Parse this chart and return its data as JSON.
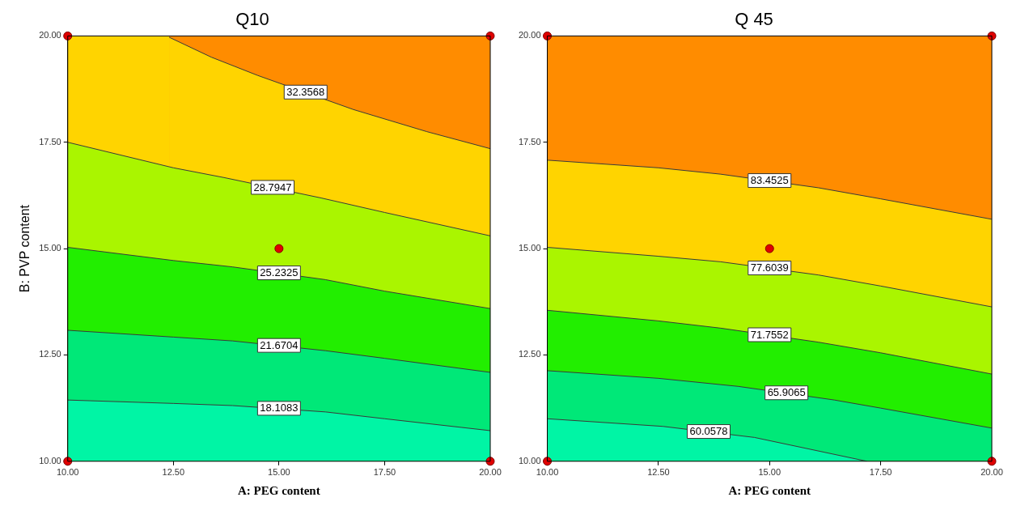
{
  "chart_data": [
    {
      "type": "area",
      "title": "Q10",
      "xlabel": "A: PEG content",
      "ylabel": "B: PVP content",
      "xlim": [
        10,
        20
      ],
      "ylim": [
        10,
        20
      ],
      "xticks": [
        {
          "value": 10,
          "label": "10.00"
        },
        {
          "value": 12.5,
          "label": "12.50"
        },
        {
          "value": 15,
          "label": "15.00"
        },
        {
          "value": 17.5,
          "label": "17.50"
        },
        {
          "value": 20,
          "label": "20.00"
        }
      ],
      "yticks": [
        {
          "value": 10,
          "label": "10.00"
        },
        {
          "value": 12.5,
          "label": "12.50"
        },
        {
          "value": 15,
          "label": "15.00"
        },
        {
          "value": 17.5,
          "label": "17.50"
        },
        {
          "value": 20,
          "label": "20.00"
        }
      ],
      "grid": false,
      "legend": false,
      "bands": [
        {
          "axis": "x",
          "from": 10,
          "to": 12.4,
          "color": "#ffd400"
        },
        {
          "axis": "x",
          "from": 12.4,
          "to": 20,
          "color": "#ff8c00"
        }
      ],
      "series": [
        {
          "name": "18.1083",
          "color": "#00f5a5",
          "x": [
            10,
            12.5,
            13.9,
            16.1,
            17.5,
            20
          ],
          "values": [
            11.44,
            11.36,
            11.31,
            11.16,
            11.0,
            10.72
          ]
        },
        {
          "name": "21.6704",
          "color": "#00e878",
          "x": [
            10,
            12.5,
            13.9,
            16.1,
            17.5,
            20
          ],
          "values": [
            13.08,
            12.92,
            12.83,
            12.6,
            12.42,
            12.09
          ]
        },
        {
          "name": "25.2325",
          "color": "#22ee00",
          "x": [
            10,
            12.5,
            13.9,
            16.1,
            17.5,
            20
          ],
          "values": [
            15.03,
            14.72,
            14.57,
            14.27,
            14.0,
            13.59
          ]
        },
        {
          "name": "28.7947",
          "color": "#aaf500",
          "x": [
            10,
            12.5,
            13.7,
            16.0,
            17.5,
            20
          ],
          "values": [
            17.5,
            16.9,
            16.67,
            16.19,
            15.85,
            15.3
          ]
        },
        {
          "name": "32.3568",
          "color": "#ffd400",
          "x": [
            12.4,
            13.4,
            14.5,
            16.76,
            18.5,
            20
          ],
          "values": [
            19.97,
            19.5,
            19.07,
            18.27,
            17.75,
            17.35
          ]
        },
        {
          "type": "scatter",
          "color": "#e00000",
          "marker": "circle",
          "x": [
            10,
            10,
            20,
            20,
            15
          ],
          "values": [
            10,
            20,
            10,
            20,
            15
          ]
        }
      ]
    },
    {
      "type": "area",
      "title": "Q 45",
      "xlabel": "A: PEG content",
      "xlim": [
        10,
        20
      ],
      "ylim": [
        10,
        20
      ],
      "xticks": [
        {
          "value": 10,
          "label": "10.00"
        },
        {
          "value": 12.5,
          "label": "12.50"
        },
        {
          "value": 15,
          "label": "15.00"
        },
        {
          "value": 17.5,
          "label": "17.50"
        },
        {
          "value": 20,
          "label": "20.00"
        }
      ],
      "yticks": [
        {
          "value": 10,
          "label": "10.00"
        },
        {
          "value": 12.5,
          "label": "12.50"
        },
        {
          "value": 15,
          "label": "15.00"
        },
        {
          "value": 17.5,
          "label": "17.50"
        },
        {
          "value": 20,
          "label": "20.00"
        }
      ],
      "grid": false,
      "legend": false,
      "bands": [
        {
          "axis": "y",
          "from": 15.69,
          "to": 20,
          "color": "#ff8c00"
        }
      ],
      "series": [
        {
          "name": "60.0578",
          "color": "#00f5a5",
          "x": [
            10,
            12.6,
            14.66,
            17.19
          ],
          "values": [
            11.0,
            10.82,
            10.56,
            10
          ]
        },
        {
          "name": "65.9065",
          "color": "#00e878",
          "x": [
            10,
            12.5,
            14.3,
            16.46,
            17.5,
            20
          ],
          "values": [
            12.13,
            11.95,
            11.76,
            11.44,
            11.25,
            10.78
          ]
        },
        {
          "name": "71.7552",
          "color": "#22ee00",
          "x": [
            10,
            12.5,
            13.9,
            16.1,
            17.5,
            20
          ],
          "values": [
            13.55,
            13.3,
            13.13,
            12.8,
            12.55,
            12.05
          ]
        },
        {
          "name": "77.6039",
          "color": "#aaf500",
          "x": [
            10,
            12.5,
            13.9,
            16.1,
            17.5,
            20
          ],
          "values": [
            15.03,
            14.82,
            14.69,
            14.38,
            14.12,
            13.63
          ]
        },
        {
          "name": "83.4525",
          "color": "#ffd400",
          "x": [
            10,
            12.5,
            13.9,
            16.1,
            17.5,
            20
          ],
          "values": [
            17.08,
            16.9,
            16.75,
            16.43,
            16.17,
            15.69
          ]
        },
        {
          "type": "scatter",
          "color": "#e00000",
          "marker": "circle",
          "x": [
            10,
            10,
            20,
            20,
            15
          ],
          "values": [
            10,
            20,
            10,
            20,
            15
          ]
        }
      ]
    }
  ]
}
